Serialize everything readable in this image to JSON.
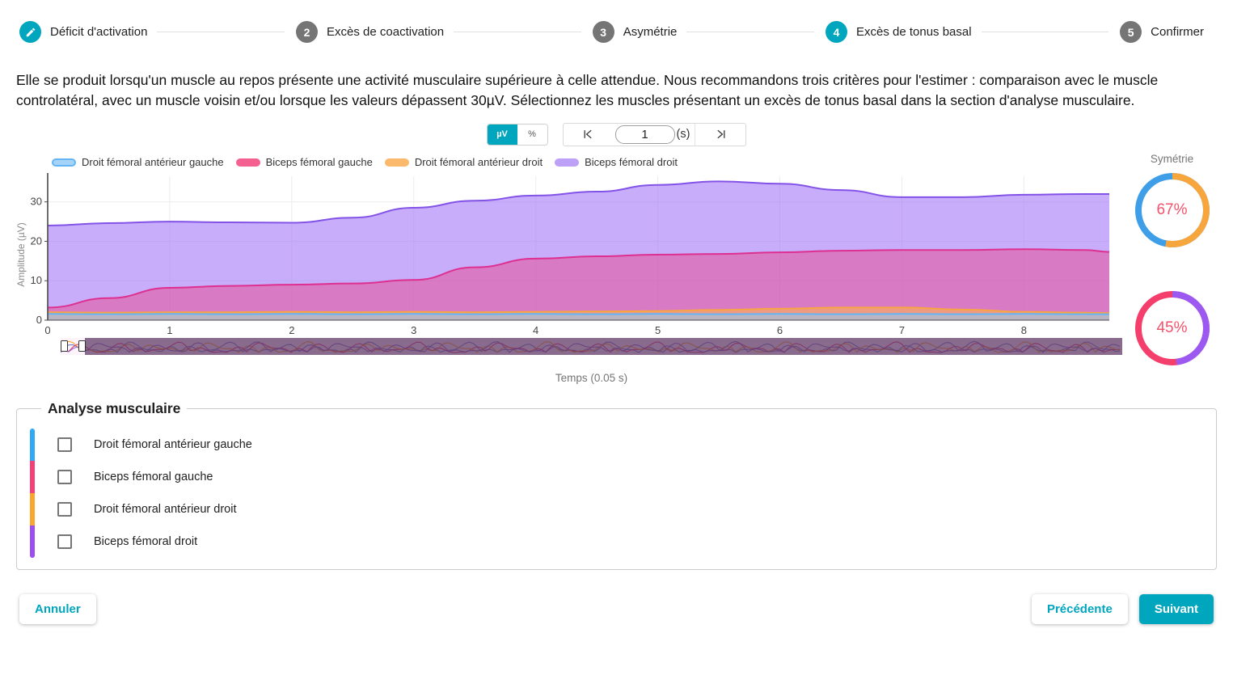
{
  "stepper": {
    "steps": [
      {
        "label": "Déficit d'activation",
        "marker": "edit",
        "icon": "pencil-icon",
        "state": "active"
      },
      {
        "label": "Excès de coactivation",
        "marker": "2",
        "state": "inactive"
      },
      {
        "label": "Asymétrie",
        "marker": "3",
        "state": "inactive"
      },
      {
        "label": "Excès de tonus basal",
        "marker": "4",
        "state": "active"
      },
      {
        "label": "Confirmer",
        "marker": "5",
        "state": "inactive"
      }
    ]
  },
  "description": "Elle se produit lorsqu'un muscle au repos présente une activité musculaire supérieure à celle attendue. Nous recommandons trois critères pour l'estimer : comparaison avec le muscle controlatéral, avec un muscle voisin et/ou lorsque les valeurs dépassent 30µV. Sélectionnez les muscles présentant un excès de tonus basal dans la section d'analyse musculaire.",
  "controls": {
    "unit_toggle": {
      "options": [
        "µV",
        "%"
      ],
      "selected": "µV"
    },
    "time_nav": {
      "skip_start_icon": "skip-to-start-icon",
      "value": "1",
      "unit_suffix": "(s)",
      "skip_end_icon": "skip-to-end-icon"
    }
  },
  "chart_data": {
    "type": "area",
    "title": "",
    "xlabel": "Temps (0.05 s)",
    "ylabel": "Amplitude (µV)",
    "x": [
      0,
      0.5,
      1,
      1.5,
      2,
      2.5,
      3,
      3.5,
      4,
      4.5,
      5,
      5.5,
      6,
      6.5,
      7,
      7.5,
      8,
      8.5,
      8.7
    ],
    "xticks": [
      0,
      1,
      2,
      3,
      4,
      5,
      6,
      7,
      8
    ],
    "yticks": [
      0,
      10,
      20,
      30
    ],
    "ylim": [
      0,
      36.5
    ],
    "xlim": [
      0,
      8.7
    ],
    "grid": true,
    "legend_position": "top",
    "draw_order": [
      3,
      1,
      2,
      0
    ],
    "series": [
      {
        "name": "Droit fémoral antérieur gauche",
        "color": "#64B5F6",
        "marker_fill": "#A6D4F9",
        "fill": "rgba(144,202,249,0.55)",
        "values": [
          1.6,
          1.5,
          1.6,
          1.5,
          1.6,
          1.5,
          1.6,
          1.5,
          1.6,
          1.5,
          1.6,
          1.5,
          1.6,
          1.5,
          1.6,
          1.5,
          1.6,
          1.5,
          1.5
        ]
      },
      {
        "name": "Biceps fémoral gauche",
        "color": "#DD3090",
        "marker_fill": "#F4608F",
        "fill": "rgba(233,72,142,0.5)",
        "values": [
          3.2,
          5.6,
          8.2,
          8.7,
          9.0,
          9.3,
          10.2,
          13.4,
          15.6,
          16.2,
          16.6,
          16.8,
          17.2,
          17.6,
          17.8,
          17.8,
          18.0,
          17.8,
          17.3
        ]
      },
      {
        "name": "Droit fémoral antérieur droit",
        "color": "#F7A543",
        "marker_fill": "#FBB96B",
        "fill": "rgba(255,183,77,0.55)",
        "values": [
          2.0,
          1.9,
          2.0,
          2.0,
          2.1,
          2.0,
          2.1,
          2.0,
          2.1,
          2.2,
          2.3,
          2.6,
          2.9,
          3.2,
          3.2,
          2.7,
          2.1,
          1.9,
          1.8
        ]
      },
      {
        "name": "Biceps fémoral droit",
        "color": "#8353E8",
        "marker_fill": "#BDA0F8",
        "fill": "rgba(167,122,247,0.62)",
        "values": [
          24,
          24.6,
          25,
          24.8,
          24.7,
          26,
          28.5,
          30.3,
          31.6,
          32.6,
          34.3,
          35.2,
          34.6,
          33,
          31.2,
          31.2,
          31.8,
          32,
          32
        ]
      }
    ]
  },
  "symmetry": {
    "title": "Symétrie",
    "value_color": "#F4516C",
    "donuts": [
      {
        "value": "67%",
        "arc_pct": 53,
        "arc_color": "#F7A63D",
        "rest_color": "#3E9EE8"
      },
      {
        "value": "45%",
        "arc_pct": 48,
        "arc_color": "#9C59F2",
        "rest_color": "#F43F6C"
      }
    ]
  },
  "muscle_analysis": {
    "title": "Analyse musculaire",
    "items": [
      {
        "label": "Droit fémoral antérieur gauche",
        "color": "#33A8F5",
        "checked": false
      },
      {
        "label": "Biceps fémoral gauche",
        "color": "#F43F78",
        "checked": false
      },
      {
        "label": "Droit fémoral antérieur droit",
        "color": "#F9A62F",
        "checked": false
      },
      {
        "label": "Biceps fémoral droit",
        "color": "#9C4EF2",
        "checked": false
      }
    ]
  },
  "footer": {
    "cancel_label": "Annuler",
    "previous_label": "Précédente",
    "next_label": "Suivant"
  }
}
